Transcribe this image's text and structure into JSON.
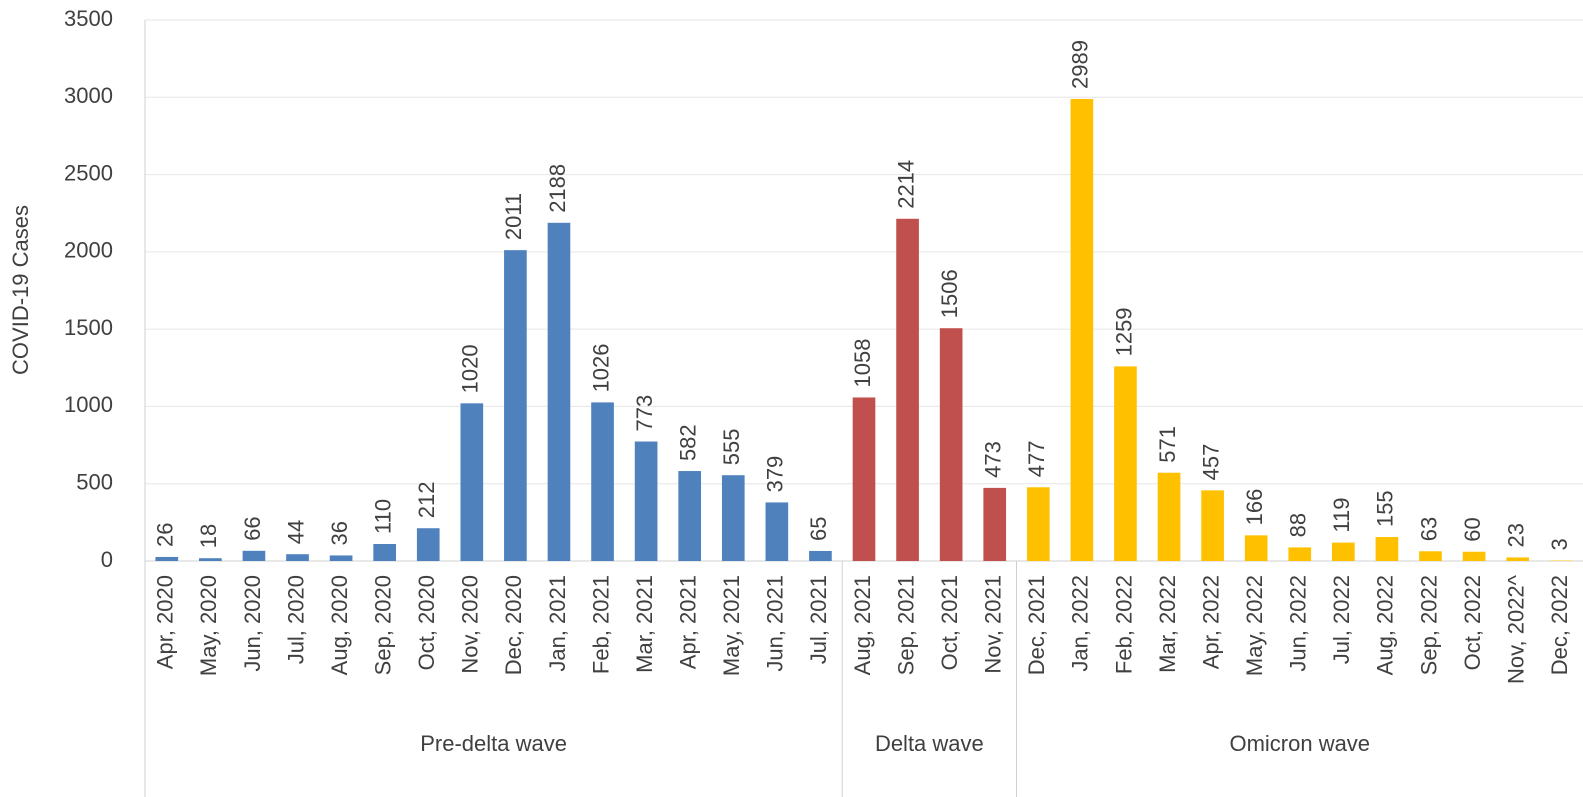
{
  "chart_data": {
    "type": "bar",
    "ylabel": "COVID-19 Cases",
    "categories": [
      "Apr, 2020",
      "May, 2020",
      "Jun, 2020",
      "Jul, 2020",
      "Aug, 2020",
      "Sep, 2020",
      "Oct, 2020",
      "Nov, 2020",
      "Dec, 2020",
      "Jan, 2021",
      "Feb, 2021",
      "Mar, 2021",
      "Apr, 2021",
      "May, 2021",
      "Jun, 2021",
      "Jul, 2021",
      "Aug, 2021",
      "Sep, 2021",
      "Oct, 2021",
      "Nov, 2021",
      "Dec, 2021",
      "Jan, 2022",
      "Feb, 2022",
      "Mar, 2022",
      "Apr, 2022",
      "May, 2022",
      "Jun, 2022",
      "Jul, 2022",
      "Aug, 2022",
      "Sep, 2022",
      "Oct, 2022",
      "Nov, 2022^",
      "Dec, 2022"
    ],
    "series": [
      {
        "name": "Pre-delta wave",
        "color": "#4f81bd",
        "values": [
          26,
          18,
          66,
          44,
          36,
          110,
          212,
          1020,
          2011,
          2188,
          1026,
          773,
          582,
          555,
          379,
          65,
          null,
          null,
          null,
          null,
          null,
          null,
          null,
          null,
          null,
          null,
          null,
          null,
          null,
          null,
          null,
          null,
          null
        ]
      },
      {
        "name": "Delta wave",
        "color": "#c0504d",
        "values": [
          null,
          null,
          null,
          null,
          null,
          null,
          null,
          null,
          null,
          null,
          null,
          null,
          null,
          null,
          null,
          null,
          1058,
          2214,
          1506,
          473,
          null,
          null,
          null,
          null,
          null,
          null,
          null,
          null,
          null,
          null,
          null,
          null,
          null
        ]
      },
      {
        "name": "Omicron wave",
        "color": "#ffc000",
        "values": [
          null,
          null,
          null,
          null,
          null,
          null,
          null,
          null,
          null,
          null,
          null,
          null,
          null,
          null,
          null,
          null,
          null,
          null,
          null,
          null,
          477,
          2989,
          1259,
          571,
          457,
          166,
          88,
          119,
          155,
          63,
          60,
          23,
          3
        ]
      }
    ],
    "ylim": [
      0,
      3500
    ],
    "yticks": [
      0,
      500,
      1000,
      1500,
      2000,
      2500,
      3000,
      3500
    ],
    "grid": true
  }
}
